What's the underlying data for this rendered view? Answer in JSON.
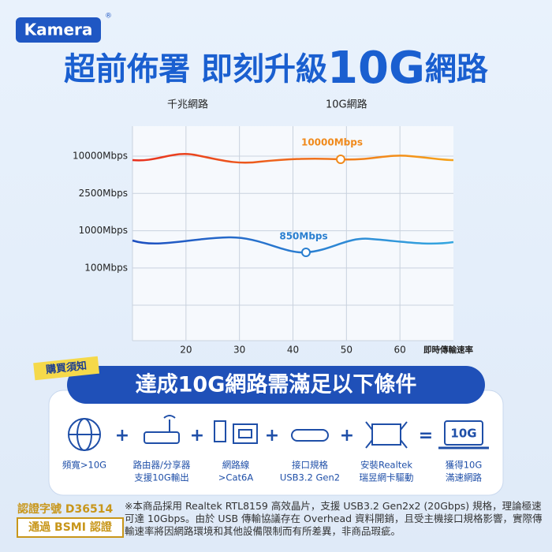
{
  "header": {
    "brand": "Kamera",
    "brand_mark": "®",
    "title_a": "超前佈署 即刻升級",
    "title_b": "10G",
    "title_c": "網路"
  },
  "chart": {
    "legend": [
      "千兆網路",
      "10G網路"
    ],
    "y_labels": [
      "10000Mbps",
      "2500Mbps",
      "1000Mbps",
      "100Mbps"
    ],
    "xlim": [
      10,
      70
    ],
    "xticks": [
      20,
      30,
      40,
      50,
      60
    ],
    "x_label": "即時傳輸速率",
    "annotations": [
      "10000Mbps",
      "850Mbps"
    ]
  },
  "notice": {
    "tag": "購買須知",
    "banner": "達成10G網路需滿足以下條件",
    "items": [
      [
        "頻寬>10G"
      ],
      [
        "路由器/分享器",
        "支援10G輸出"
      ],
      [
        "網路線",
        ">Cat6A"
      ],
      [
        "接口規格",
        "USB3.2 Gen2"
      ],
      [
        "安裝Realtek",
        "瑞昱網卡驅動"
      ],
      [
        "獲得10G",
        "滿速網路"
      ]
    ],
    "result_badge": "10G"
  },
  "footer": {
    "cert_no": "認證字號 D36514",
    "cert_pass": "通過 BSMI 認證",
    "note": "※本商品採用 Realtek RTL8159 高效晶片，支援 USB3.2 Gen2x2 (20Gbps) 規格，理論極速可達 10Gbps。由於 USB 傳輸協議存在 Overhead 資料開銷，且受主機接口規格影響，實際傳輸速率將因網路環境和其他設備限制而有所差異，非商品瑕疵。"
  }
}
